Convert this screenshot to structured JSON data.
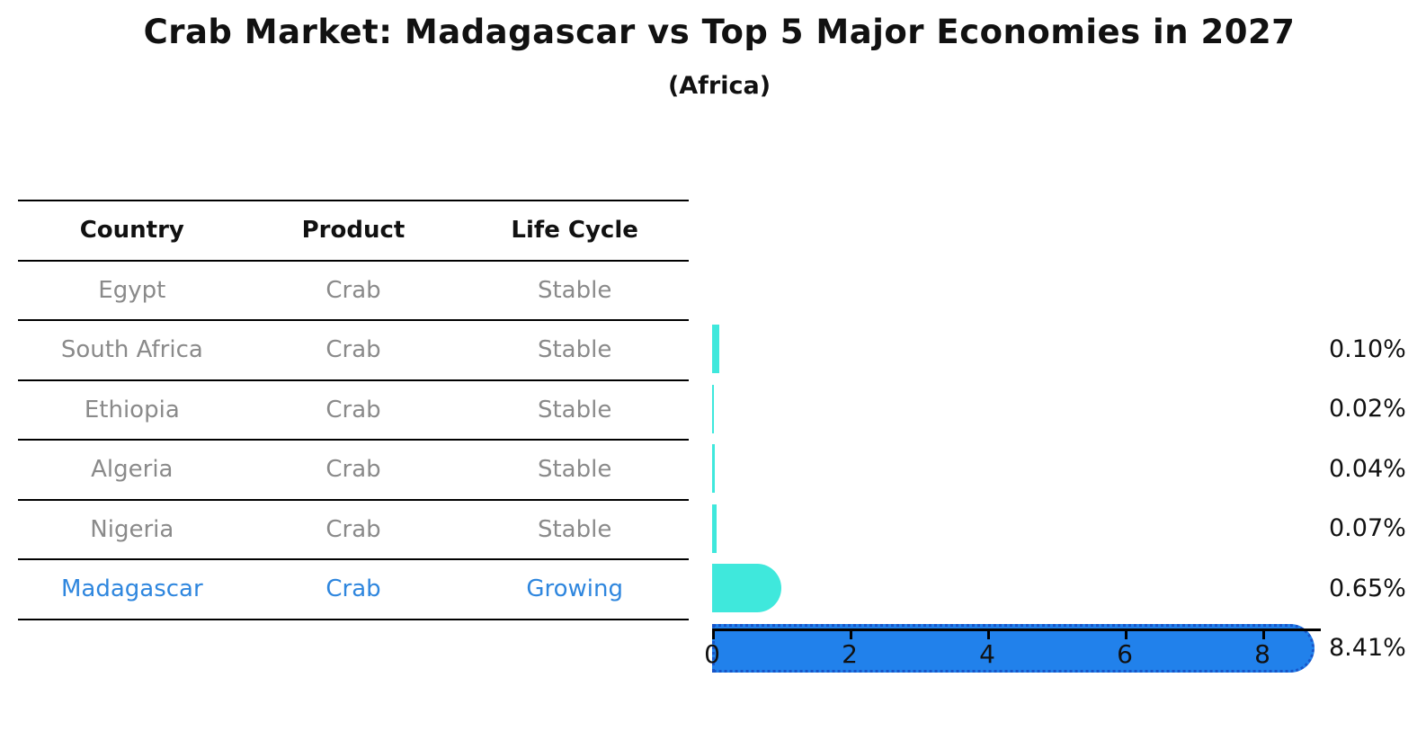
{
  "title": "Crab Market: Madagascar vs Top 5 Major Economies in 2027",
  "subtitle": "(Africa)",
  "table": {
    "headers": [
      "Country",
      "Product",
      "Life Cycle"
    ],
    "rows": [
      {
        "country": "Egypt",
        "product": "Crab",
        "life_cycle": "Stable",
        "highlighted": false
      },
      {
        "country": "South Africa",
        "product": "Crab",
        "life_cycle": "Stable",
        "highlighted": false
      },
      {
        "country": "Ethiopia",
        "product": "Crab",
        "life_cycle": "Stable",
        "highlighted": false
      },
      {
        "country": "Algeria",
        "product": "Crab",
        "life_cycle": "Stable",
        "highlighted": false
      },
      {
        "country": "Nigeria",
        "product": "Crab",
        "life_cycle": "Stable",
        "highlighted": false
      },
      {
        "country": "Madagascar",
        "product": "Crab",
        "life_cycle": "Growing",
        "highlighted": true
      }
    ]
  },
  "chart_data": {
    "type": "bar",
    "orientation": "horizontal",
    "title": "Crab Market: Madagascar vs Top 5 Major Economies in 2027",
    "subtitle": "(Africa)",
    "categories": [
      "Egypt",
      "South Africa",
      "Ethiopia",
      "Algeria",
      "Nigeria",
      "Madagascar"
    ],
    "values": [
      0.1,
      0.02,
      0.04,
      0.07,
      0.65,
      8.41
    ],
    "value_labels": [
      "0.10%",
      "0.02%",
      "0.04%",
      "0.07%",
      "0.65%",
      "8.41%"
    ],
    "xlabel": "",
    "ylabel": "",
    "xticks": [
      0,
      2,
      4,
      6,
      8
    ],
    "xlim": [
      0,
      8.84
    ],
    "grid": false,
    "legend": "none",
    "colors": {
      "bar_default": "#3fe8dc",
      "bar_highlight": "#2181eb",
      "bar_highlight_edge": "#1855c8",
      "highlight_text": "#2e86de",
      "row_text": "#8a8a8a",
      "axis_text": "#111111"
    }
  }
}
